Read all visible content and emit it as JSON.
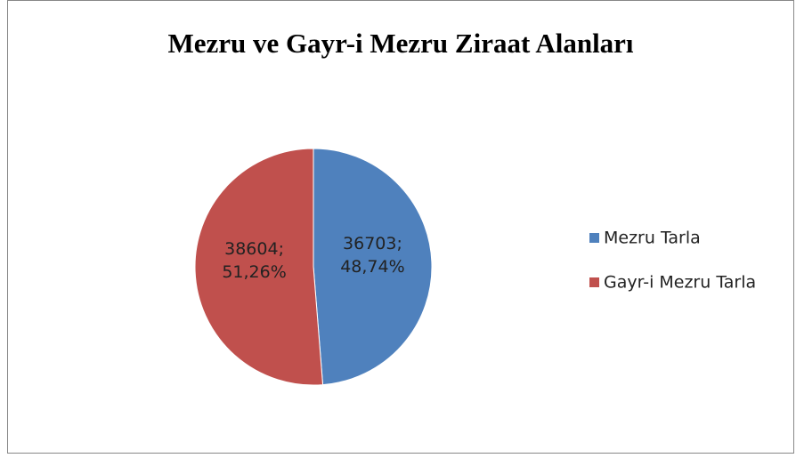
{
  "chart_data": {
    "type": "pie",
    "title": "Mezru ve Gayr-i Mezru Ziraat Alanları",
    "categories": [
      "Mezru Tarla",
      "Gayr-i Mezru Tarla"
    ],
    "values": [
      36703,
      38604
    ],
    "value_labels": [
      "36703; 48,74%",
      "38604; 51,26%"
    ],
    "colors": [
      "#4f81bd",
      "#c0504d"
    ],
    "legend": "right"
  }
}
